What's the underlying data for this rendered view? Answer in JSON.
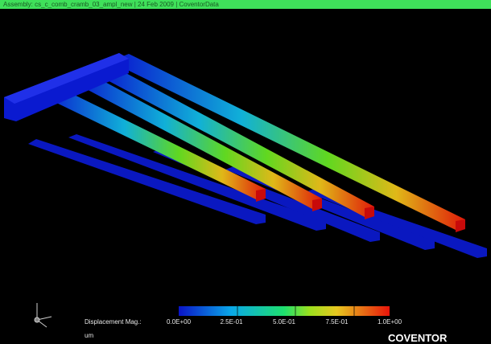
{
  "header": {
    "text": "Assembly: cs_c_comb_cramb_03_ampl_new | 24 Feb 2009 | CoventorData"
  },
  "legend": {
    "label": "Displacement Mag.:",
    "ticks": [
      "0.0E+00",
      "2.5E-01",
      "5.0E-01",
      "7.5E-01",
      "1.0E+00"
    ],
    "unit": "um"
  },
  "brand": "COVENTOR"
}
